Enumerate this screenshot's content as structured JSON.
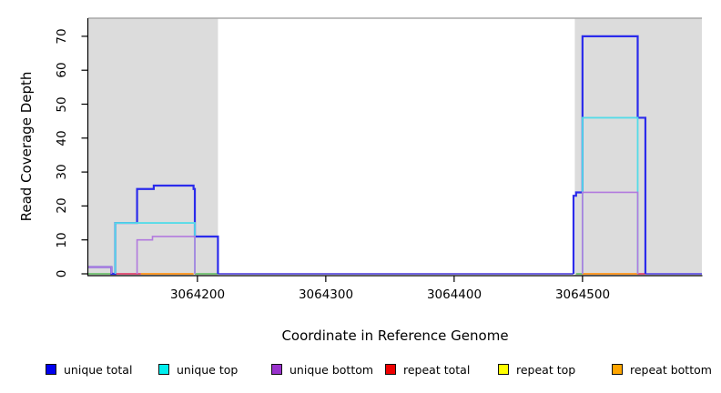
{
  "chart_data": {
    "type": "line",
    "subtype": "step-coverage",
    "title": "",
    "xlabel": "Coordinate in Reference Genome",
    "ylabel": "Read Coverage Depth",
    "xlim": [
      3064115,
      3064593
    ],
    "ylim": [
      0,
      75
    ],
    "xticks": [
      3064200,
      3064300,
      3064400,
      3064500
    ],
    "yticks": [
      0,
      10,
      20,
      30,
      40,
      50,
      60,
      70
    ],
    "grid": false,
    "legend_position": "bottom",
    "background_color": "#ffffff",
    "masked_region_color": "#dcdcdc",
    "masked_regions": [
      {
        "from": 3064115,
        "to": 3064216
      },
      {
        "from": 3064494,
        "to": 3064593
      }
    ],
    "series": [
      {
        "name": "unique total",
        "color": "#2b2beb",
        "line_width": 2.2,
        "segments": [
          [
            [
              3064115,
              2
            ],
            [
              3064133,
              2
            ],
            [
              3064133,
              0
            ],
            [
              3064136,
              0
            ],
            [
              3064136,
              15
            ],
            [
              3064153,
              15
            ],
            [
              3064153,
              25
            ],
            [
              3064166,
              25
            ],
            [
              3064166,
              26
            ],
            [
              3064197,
              26
            ],
            [
              3064197,
              25
            ],
            [
              3064198,
              25
            ],
            [
              3064198,
              11
            ],
            [
              3064216,
              11
            ],
            [
              3064216,
              0
            ]
          ],
          [
            [
              3064493,
              0
            ],
            [
              3064493,
              23
            ],
            [
              3064495,
              23
            ],
            [
              3064495,
              24
            ],
            [
              3064500,
              24
            ],
            [
              3064500,
              70
            ],
            [
              3064543,
              70
            ],
            [
              3064543,
              46
            ],
            [
              3064549,
              46
            ],
            [
              3064549,
              0
            ]
          ]
        ]
      },
      {
        "name": "unique top",
        "color": "#55dbe8",
        "line_width": 1.8,
        "segments": [
          [
            [
              3064136,
              0
            ],
            [
              3064136,
              15
            ],
            [
              3064198,
              15
            ],
            [
              3064198,
              0
            ]
          ],
          [
            [
              3064500,
              0
            ],
            [
              3064500,
              46
            ],
            [
              3064543,
              46
            ],
            [
              3064543,
              0
            ]
          ]
        ]
      },
      {
        "name": "unique bottom",
        "color": "#b27ade",
        "line_width": 1.6,
        "segments": [
          [
            [
              3064115,
              2
            ],
            [
              3064133,
              2
            ],
            [
              3064133,
              0
            ]
          ],
          [
            [
              3064153,
              0
            ],
            [
              3064153,
              10
            ],
            [
              3064165,
              10
            ],
            [
              3064165,
              11
            ],
            [
              3064198,
              11
            ],
            [
              3064198,
              0
            ]
          ],
          [
            [
              3064500,
              0
            ],
            [
              3064500,
              24
            ],
            [
              3064543,
              24
            ],
            [
              3064543,
              0
            ]
          ]
        ]
      }
    ],
    "zero_line_segments": [
      {
        "from": 3064115,
        "to": 3064136,
        "color": "#7cc47c"
      },
      {
        "from": 3064136,
        "to": 3064156,
        "color": "#e0577c"
      },
      {
        "from": 3064156,
        "to": 3064197,
        "color": "#ff9d2e"
      },
      {
        "from": 3064198,
        "to": 3064216,
        "color": "#7cc47c"
      },
      {
        "from": 3064216,
        "to": 3064493,
        "color": "#7468e4"
      },
      {
        "from": 3064495,
        "to": 3064500,
        "color": "#7cc47c"
      },
      {
        "from": 3064500,
        "to": 3064543,
        "color": "#ff9d2e"
      },
      {
        "from": 3064543,
        "to": 3064549,
        "color": "#e0577c"
      },
      {
        "from": 3064549,
        "to": 3064593,
        "color": "#7468e4"
      }
    ],
    "frame": {
      "top_line_color": "#a8a8a8",
      "axis_color": "#000000"
    }
  },
  "legend": {
    "items": [
      {
        "label": "unique total",
        "color": "#0000ee"
      },
      {
        "label": "unique top",
        "color": "#00eeee"
      },
      {
        "label": "unique bottom",
        "color": "#9932cc"
      },
      {
        "label": "repeat total",
        "color": "#ee0000"
      },
      {
        "label": "repeat top",
        "color": "#ffff00"
      },
      {
        "label": "repeat bottom",
        "color": "#ffa500"
      }
    ]
  }
}
